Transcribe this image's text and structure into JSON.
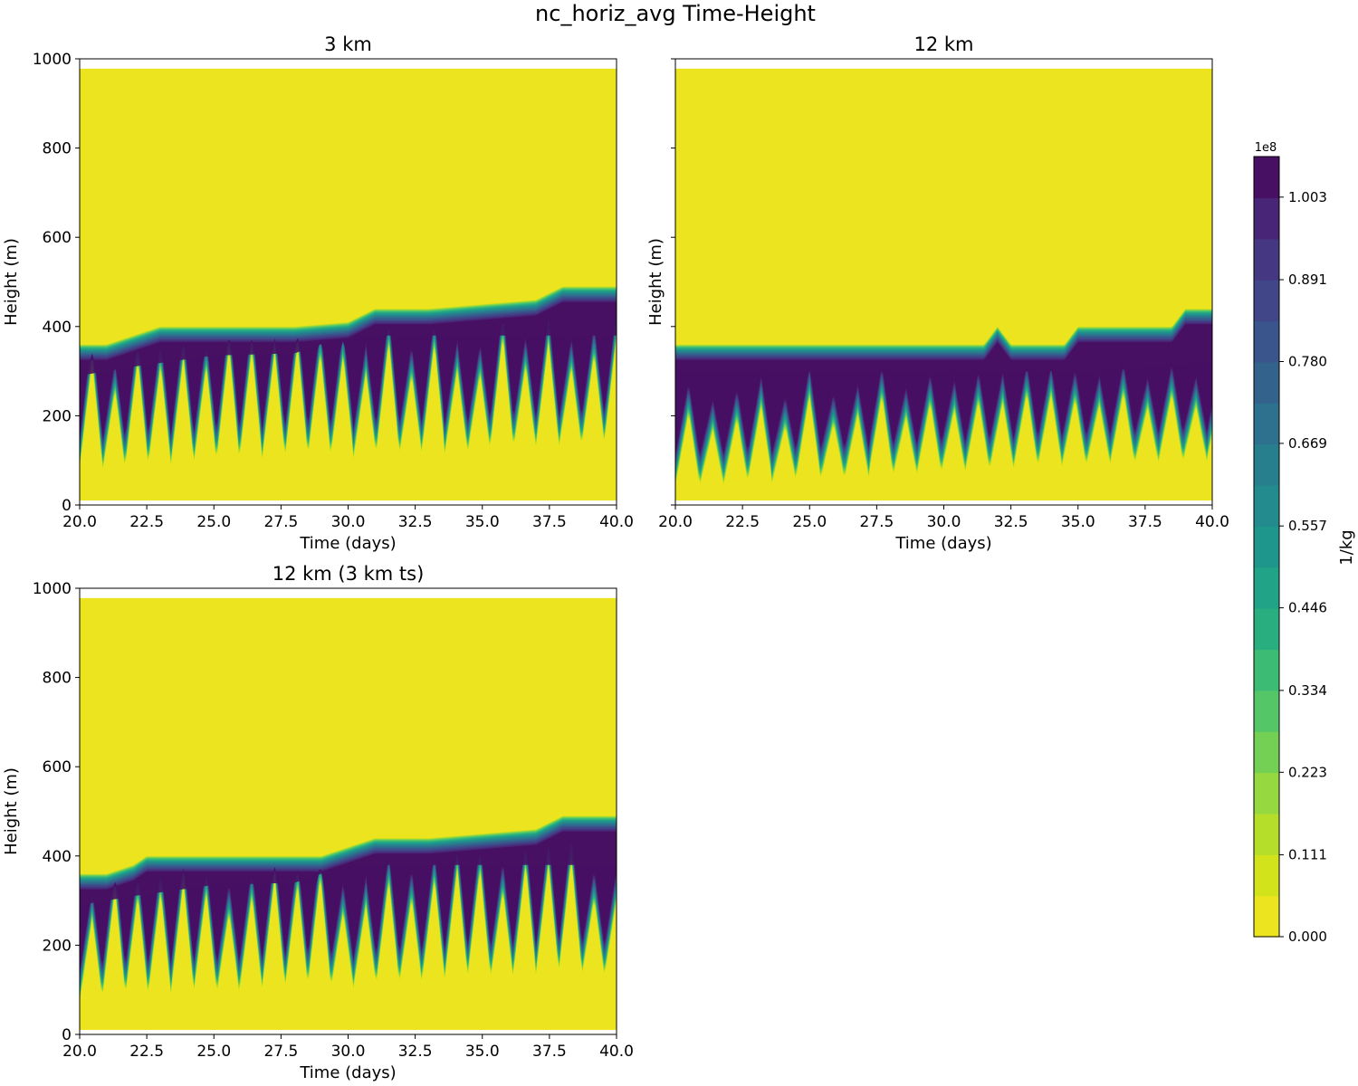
{
  "chart_data": {
    "type": "contourf",
    "title": "nc_horiz_avg Time-Height",
    "panels": [
      {
        "id": "3km",
        "title": "3 km",
        "xlabel": "Time (days)",
        "ylabel": "Height (m)",
        "xlim": [
          20,
          40
        ],
        "ylim": [
          0,
          1000
        ],
        "xticks": [
          "20.0",
          "22.5",
          "25.0",
          "27.5",
          "30.0",
          "32.5",
          "35.0",
          "37.5",
          "40.0"
        ],
        "yticks": [
          "0",
          "200",
          "400",
          "600",
          "800",
          "1000"
        ],
        "show_ytick_labels": true,
        "cloud_top_m": [
          [
            20,
            360
          ],
          [
            21,
            360
          ],
          [
            22,
            380
          ],
          [
            23,
            400
          ],
          [
            24,
            400
          ],
          [
            26,
            400
          ],
          [
            28,
            400
          ],
          [
            30,
            410
          ],
          [
            31,
            440
          ],
          [
            33,
            440
          ],
          [
            35,
            450
          ],
          [
            37,
            460
          ],
          [
            38,
            490
          ],
          [
            40,
            490
          ]
        ],
        "peak_core_top_m": [
          [
            20,
            290
          ],
          [
            22,
            310
          ],
          [
            25,
            335
          ],
          [
            28,
            340
          ],
          [
            30,
            380
          ],
          [
            33,
            380
          ],
          [
            36,
            380
          ],
          [
            40,
            380
          ]
        ],
        "cloud_base_min_m": 30,
        "cloud_base_max_m": 300,
        "cycle_days": 0.85
      },
      {
        "id": "12km",
        "title": "12 km",
        "xlabel": "Time (days)",
        "ylabel": "Height (m)",
        "xlim": [
          20,
          40
        ],
        "ylim": [
          0,
          1000
        ],
        "xticks": [
          "20.0",
          "22.5",
          "25.0",
          "27.5",
          "30.0",
          "32.5",
          "35.0",
          "37.5",
          "40.0"
        ],
        "yticks": [
          "0",
          "200",
          "400",
          "600",
          "800",
          "1000"
        ],
        "show_ytick_labels": false,
        "cloud_top_m": [
          [
            20,
            360
          ],
          [
            31.5,
            360
          ],
          [
            32,
            400
          ],
          [
            32.5,
            360
          ],
          [
            34.5,
            360
          ],
          [
            35,
            400
          ],
          [
            35.5,
            400
          ],
          [
            38.5,
            400
          ],
          [
            39,
            440
          ],
          [
            40,
            440
          ]
        ],
        "peak_core_top_m": [
          [
            20,
            300
          ],
          [
            30,
            300
          ],
          [
            33,
            300
          ],
          [
            36,
            300
          ],
          [
            40,
            320
          ]
        ],
        "cloud_base_min_m": 5,
        "cloud_base_max_m": 200,
        "cycle_days": 0.9
      },
      {
        "id": "12km_3kmts",
        "title": "12 km (3 km ts)",
        "xlabel": "Time (days)",
        "ylabel": "Height (m)",
        "xlim": [
          20,
          40
        ],
        "ylim": [
          0,
          1000
        ],
        "xticks": [
          "20.0",
          "22.5",
          "25.0",
          "27.5",
          "30.0",
          "32.5",
          "35.0",
          "37.5",
          "40.0"
        ],
        "yticks": [
          "0",
          "200",
          "400",
          "600",
          "800",
          "1000"
        ],
        "show_ytick_labels": true,
        "cloud_top_m": [
          [
            20,
            360
          ],
          [
            21,
            360
          ],
          [
            22,
            380
          ],
          [
            22.5,
            400
          ],
          [
            26,
            400
          ],
          [
            29,
            400
          ],
          [
            30,
            420
          ],
          [
            31,
            440
          ],
          [
            33,
            440
          ],
          [
            35,
            450
          ],
          [
            37,
            460
          ],
          [
            38,
            490
          ],
          [
            40,
            490
          ]
        ],
        "peak_core_top_m": [
          [
            20,
            290
          ],
          [
            22,
            310
          ],
          [
            25,
            335
          ],
          [
            28,
            340
          ],
          [
            30,
            380
          ],
          [
            33,
            380
          ],
          [
            36,
            380
          ],
          [
            40,
            380
          ]
        ],
        "cloud_base_min_m": 30,
        "cloud_base_max_m": 300,
        "cycle_days": 0.85
      }
    ],
    "colorbar": {
      "label": "1/kg",
      "exponent": "1e8",
      "ticks": [
        "0.000",
        "0.111",
        "0.223",
        "0.334",
        "0.446",
        "0.557",
        "0.669",
        "0.780",
        "0.891",
        "1.003"
      ],
      "tick_values": [
        0.0,
        0.111,
        0.223,
        0.334,
        0.446,
        0.557,
        0.669,
        0.78,
        0.891,
        1.003
      ],
      "vmax": 1.058,
      "n_levels": 19,
      "colormap": "viridis"
    }
  },
  "colors": {
    "viridis": [
      "#440154",
      "#481a6c",
      "#472f7d",
      "#414487",
      "#39568c",
      "#31688e",
      "#2a788e",
      "#23888e",
      "#1f988b",
      "#22a884",
      "#35b779",
      "#54c568",
      "#7ad151",
      "#a5db36",
      "#d2e21b",
      "#fde725"
    ],
    "level_colors": [
      "#ece41f",
      "#d2e21b",
      "#b5de2b",
      "#95d840",
      "#73d055",
      "#55c667",
      "#3cbb75",
      "#29af7f",
      "#20a386",
      "#1f968b",
      "#238a8d",
      "#277f8e",
      "#2d718e",
      "#33638d",
      "#39558c",
      "#404688",
      "#453781",
      "#482576",
      "#471063"
    ]
  }
}
